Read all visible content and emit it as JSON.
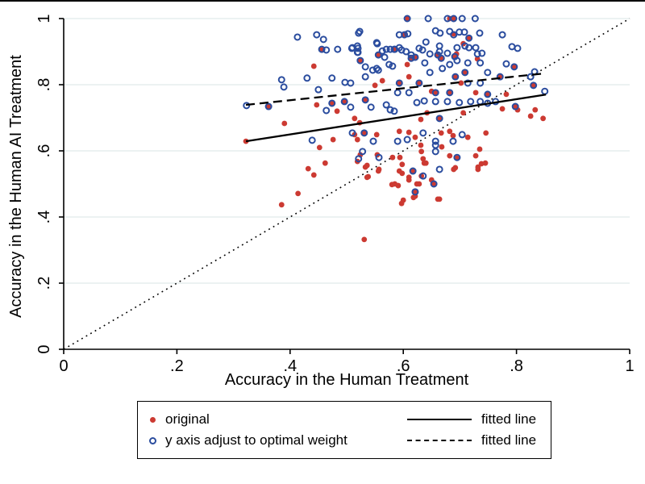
{
  "window": {
    "top_border_color": "#000000",
    "background": "#ffffff"
  },
  "chart_data": {
    "type": "scatter",
    "title": "",
    "xlabel": "Accuracy in the Human Treatment",
    "ylabel": "Accuracy in the Human AI Treatment",
    "xlim": [
      0,
      1
    ],
    "ylim": [
      0,
      1
    ],
    "xtick_labels": [
      "0",
      ".2",
      ".4",
      ".6",
      ".8",
      "1"
    ],
    "xtick_values": [
      0,
      0.2,
      0.4,
      0.6,
      0.8,
      1
    ],
    "ytick_labels": [
      "0",
      ".2",
      ".4",
      ".6",
      ".8",
      "1"
    ],
    "ytick_values": [
      0,
      0.2,
      0.4,
      0.6,
      0.8,
      1
    ],
    "grid": "horizontal",
    "grid_color": "#e6eded",
    "axis_color": "#000000",
    "legend_position": "bottom",
    "series": [
      {
        "name": "original",
        "marker": "filled-circle",
        "color": "#cc3a32",
        "points": [
          [
            0.322,
            0.629
          ],
          [
            0.362,
            0.734
          ],
          [
            0.39,
            0.683
          ],
          [
            0.442,
            0.856
          ],
          [
            0.447,
            0.739
          ],
          [
            0.474,
            0.744
          ],
          [
            0.496,
            0.749
          ],
          [
            0.483,
            0.72
          ],
          [
            0.514,
            0.698
          ],
          [
            0.523,
            0.685
          ],
          [
            0.533,
            0.754
          ],
          [
            0.55,
            0.798
          ],
          [
            0.563,
            0.812
          ],
          [
            0.452,
            0.61
          ],
          [
            0.476,
            0.634
          ],
          [
            0.462,
            0.563
          ],
          [
            0.432,
            0.546
          ],
          [
            0.442,
            0.527
          ],
          [
            0.414,
            0.471
          ],
          [
            0.385,
            0.437
          ],
          [
            0.514,
            0.649
          ],
          [
            0.519,
            0.634
          ],
          [
            0.531,
            0.654
          ],
          [
            0.553,
            0.649
          ],
          [
            0.524,
            0.588
          ],
          [
            0.533,
            0.551
          ],
          [
            0.554,
            0.588
          ],
          [
            0.557,
            0.544
          ],
          [
            0.538,
            0.522
          ],
          [
            0.581,
            0.58
          ],
          [
            0.58,
            0.498
          ],
          [
            0.531,
            0.332
          ],
          [
            0.593,
            0.659
          ],
          [
            0.61,
            0.656
          ],
          [
            0.621,
            0.641
          ],
          [
            0.631,
            0.617
          ],
          [
            0.632,
            0.598
          ],
          [
            0.635,
            0.576
          ],
          [
            0.64,
            0.563
          ],
          [
            0.667,
            0.654
          ],
          [
            0.682,
            0.659
          ],
          [
            0.688,
            0.646
          ],
          [
            0.714,
            0.641
          ],
          [
            0.746,
            0.654
          ],
          [
            0.668,
            0.612
          ],
          [
            0.682,
            0.585
          ],
          [
            0.695,
            0.578
          ],
          [
            0.735,
            0.605
          ],
          [
            0.745,
            0.563
          ],
          [
            0.732,
            0.544
          ],
          [
            0.728,
            0.585
          ],
          [
            0.594,
            0.58
          ],
          [
            0.593,
            0.539
          ],
          [
            0.61,
            0.52
          ],
          [
            0.628,
            0.5
          ],
          [
            0.661,
            0.454
          ],
          [
            0.6,
            0.451
          ],
          [
            0.618,
            0.459
          ],
          [
            0.692,
            0.549
          ],
          [
            0.519,
            0.568
          ],
          [
            0.536,
            0.556
          ],
          [
            0.556,
            0.539
          ],
          [
            0.536,
            0.52
          ],
          [
            0.598,
            0.559
          ],
          [
            0.598,
            0.532
          ],
          [
            0.617,
            0.537
          ],
          [
            0.61,
            0.512
          ],
          [
            0.632,
            0.524
          ],
          [
            0.624,
            0.5
          ],
          [
            0.585,
            0.5
          ],
          [
            0.591,
            0.495
          ],
          [
            0.654,
            0.5
          ],
          [
            0.65,
            0.512
          ],
          [
            0.62,
            0.476
          ],
          [
            0.597,
            0.441
          ],
          [
            0.621,
            0.463
          ],
          [
            0.664,
            0.454
          ],
          [
            0.689,
            0.544
          ],
          [
            0.732,
            0.551
          ],
          [
            0.738,
            0.561
          ],
          [
            0.637,
            0.563
          ],
          [
            0.782,
            0.771
          ],
          [
            0.796,
            0.854
          ],
          [
            0.83,
            0.798
          ],
          [
            0.798,
            0.734
          ],
          [
            0.802,
            0.724
          ],
          [
            0.833,
            0.724
          ],
          [
            0.825,
            0.705
          ],
          [
            0.847,
            0.698
          ],
          [
            0.775,
            0.727
          ],
          [
            0.608,
            1.0
          ],
          [
            0.682,
            1.0
          ],
          [
            0.689,
            1.0
          ],
          [
            0.602,
            0.951
          ],
          [
            0.689,
            0.954
          ],
          [
            0.621,
            0.885
          ],
          [
            0.614,
            0.88
          ],
          [
            0.661,
            0.89
          ],
          [
            0.694,
            0.893
          ],
          [
            0.706,
            0.924
          ],
          [
            0.731,
            0.878
          ],
          [
            0.607,
            0.861
          ],
          [
            0.61,
            0.824
          ],
          [
            0.593,
            0.805
          ],
          [
            0.628,
            0.805
          ],
          [
            0.65,
            0.78
          ],
          [
            0.657,
            0.776
          ],
          [
            0.692,
            0.824
          ],
          [
            0.702,
            0.805
          ],
          [
            0.709,
            0.837
          ],
          [
            0.682,
            0.776
          ],
          [
            0.642,
            0.715
          ],
          [
            0.631,
            0.695
          ],
          [
            0.664,
            0.698
          ],
          [
            0.706,
            0.715
          ],
          [
            0.728,
            0.776
          ],
          [
            0.749,
            0.771
          ],
          [
            0.771,
            0.824
          ],
          [
            0.524,
            0.873
          ],
          [
            0.556,
            0.89
          ],
          [
            0.585,
            0.907
          ],
          [
            0.667,
            0.88
          ],
          [
            0.691,
            0.885
          ],
          [
            0.716,
            0.941
          ],
          [
            0.456,
            0.905
          ]
        ]
      },
      {
        "name": "y axis adjust to optimal weight",
        "marker": "hollow-circle",
        "color": "#2a4c9e",
        "points": [
          [
            0.323,
            0.737
          ],
          [
            0.362,
            0.734
          ],
          [
            0.413,
            0.944
          ],
          [
            0.447,
            0.951
          ],
          [
            0.459,
            0.937
          ],
          [
            0.456,
            0.907
          ],
          [
            0.464,
            0.905
          ],
          [
            0.484,
            0.907
          ],
          [
            0.51,
            0.912
          ],
          [
            0.52,
            0.91
          ],
          [
            0.52,
            0.898
          ],
          [
            0.523,
            0.961
          ],
          [
            0.554,
            0.924
          ],
          [
            0.563,
            0.902
          ],
          [
            0.57,
            0.907
          ],
          [
            0.577,
            0.907
          ],
          [
            0.584,
            0.907
          ],
          [
            0.556,
            0.89
          ],
          [
            0.567,
            0.883
          ],
          [
            0.533,
            0.854
          ],
          [
            0.546,
            0.844
          ],
          [
            0.553,
            0.849
          ],
          [
            0.575,
            0.861
          ],
          [
            0.581,
            0.856
          ],
          [
            0.533,
            0.824
          ],
          [
            0.556,
            0.844
          ],
          [
            0.385,
            0.815
          ],
          [
            0.389,
            0.793
          ],
          [
            0.43,
            0.82
          ],
          [
            0.45,
            0.785
          ],
          [
            0.474,
            0.82
          ],
          [
            0.497,
            0.807
          ],
          [
            0.507,
            0.805
          ],
          [
            0.439,
            0.632
          ],
          [
            0.464,
            0.722
          ],
          [
            0.474,
            0.744
          ],
          [
            0.496,
            0.749
          ],
          [
            0.507,
            0.732
          ],
          [
            0.533,
            0.754
          ],
          [
            0.543,
            0.732
          ],
          [
            0.57,
            0.739
          ],
          [
            0.577,
            0.724
          ],
          [
            0.584,
            0.72
          ],
          [
            0.51,
            0.654
          ],
          [
            0.531,
            0.654
          ],
          [
            0.547,
            0.629
          ],
          [
            0.528,
            0.598
          ],
          [
            0.521,
            0.576
          ],
          [
            0.557,
            0.58
          ],
          [
            0.59,
            0.629
          ],
          [
            0.607,
            0.634
          ],
          [
            0.635,
            0.654
          ],
          [
            0.657,
            0.629
          ],
          [
            0.657,
            0.617
          ],
          [
            0.657,
            0.598
          ],
          [
            0.688,
            0.629
          ],
          [
            0.704,
            0.649
          ],
          [
            0.695,
            0.58
          ],
          [
            0.617,
            0.539
          ],
          [
            0.635,
            0.524
          ],
          [
            0.654,
            0.5
          ],
          [
            0.621,
            0.476
          ],
          [
            0.664,
            0.544
          ],
          [
            0.644,
            1.0
          ],
          [
            0.704,
            1.0
          ],
          [
            0.727,
            1.0
          ],
          [
            0.607,
            1.0
          ],
          [
            0.678,
            1.0
          ],
          [
            0.689,
            1.0
          ],
          [
            0.602,
            0.951
          ],
          [
            0.689,
            0.951
          ],
          [
            0.614,
            0.88
          ],
          [
            0.661,
            0.89
          ],
          [
            0.593,
            0.805
          ],
          [
            0.628,
            0.805
          ],
          [
            0.657,
            0.776
          ],
          [
            0.692,
            0.824
          ],
          [
            0.709,
            0.837
          ],
          [
            0.682,
            0.776
          ],
          [
            0.664,
            0.698
          ],
          [
            0.749,
            0.771
          ],
          [
            0.771,
            0.824
          ],
          [
            0.521,
            0.956
          ],
          [
            0.593,
            0.951
          ],
          [
            0.608,
            0.954
          ],
          [
            0.657,
            0.963
          ],
          [
            0.665,
            0.956
          ],
          [
            0.682,
            0.961
          ],
          [
            0.699,
            0.959
          ],
          [
            0.708,
            0.959
          ],
          [
            0.735,
            0.956
          ],
          [
            0.775,
            0.951
          ],
          [
            0.509,
            0.91
          ],
          [
            0.519,
            0.917
          ],
          [
            0.519,
            0.898
          ],
          [
            0.524,
            0.873
          ],
          [
            0.553,
            0.927
          ],
          [
            0.593,
            0.912
          ],
          [
            0.597,
            0.905
          ],
          [
            0.605,
            0.9
          ],
          [
            0.614,
            0.89
          ],
          [
            0.621,
            0.883
          ],
          [
            0.628,
            0.91
          ],
          [
            0.634,
            0.905
          ],
          [
            0.64,
            0.929
          ],
          [
            0.647,
            0.893
          ],
          [
            0.664,
            0.917
          ],
          [
            0.664,
            0.9
          ],
          [
            0.667,
            0.88
          ],
          [
            0.678,
            0.895
          ],
          [
            0.691,
            0.885
          ],
          [
            0.695,
            0.912
          ],
          [
            0.709,
            0.917
          ],
          [
            0.716,
            0.912
          ],
          [
            0.728,
            0.912
          ],
          [
            0.731,
            0.893
          ],
          [
            0.739,
            0.895
          ],
          [
            0.792,
            0.915
          ],
          [
            0.638,
            0.866
          ],
          [
            0.647,
            0.837
          ],
          [
            0.669,
            0.849
          ],
          [
            0.682,
            0.861
          ],
          [
            0.695,
            0.873
          ],
          [
            0.714,
            0.866
          ],
          [
            0.736,
            0.866
          ],
          [
            0.714,
            0.805
          ],
          [
            0.736,
            0.805
          ],
          [
            0.749,
            0.837
          ],
          [
            0.61,
            0.776
          ],
          [
            0.59,
            0.776
          ],
          [
            0.624,
            0.746
          ],
          [
            0.637,
            0.751
          ],
          [
            0.657,
            0.749
          ],
          [
            0.678,
            0.749
          ],
          [
            0.699,
            0.746
          ],
          [
            0.719,
            0.749
          ],
          [
            0.736,
            0.749
          ],
          [
            0.749,
            0.744
          ],
          [
            0.763,
            0.749
          ],
          [
            0.802,
            0.91
          ],
          [
            0.782,
            0.863
          ],
          [
            0.796,
            0.854
          ],
          [
            0.832,
            0.839
          ],
          [
            0.825,
            0.824
          ],
          [
            0.83,
            0.798
          ],
          [
            0.85,
            0.78
          ],
          [
            0.798,
            0.734
          ],
          [
            0.716,
            0.941
          ],
          [
            0.585,
            0.907
          ]
        ]
      }
    ],
    "lines": [
      {
        "name": "fitted line (original)",
        "style": "solid",
        "color": "#000000",
        "x1": 0.322,
        "y1": 0.629,
        "x2": 0.852,
        "y2": 0.77
      },
      {
        "name": "fitted line (adjusted)",
        "style": "dashed",
        "color": "#000000",
        "x1": 0.322,
        "y1": 0.739,
        "x2": 0.849,
        "y2": 0.834
      },
      {
        "name": "45-degree reference line",
        "style": "dotted",
        "color": "#000000",
        "x1": 0.0,
        "y1": 0.0,
        "x2": 1.0,
        "y2": 1.0
      }
    ]
  },
  "legend": {
    "rows": [
      {
        "marker": "red-filled-dot",
        "marker_color": "#cc3a32",
        "label": "original",
        "line_style": "solid",
        "line_label": "fitted line"
      },
      {
        "marker": "blue-hollow-circle",
        "marker_color": "#2a4c9e",
        "label": "y axis adjust to optimal weight",
        "line_style": "dashed",
        "line_label": "fitted line"
      }
    ]
  }
}
